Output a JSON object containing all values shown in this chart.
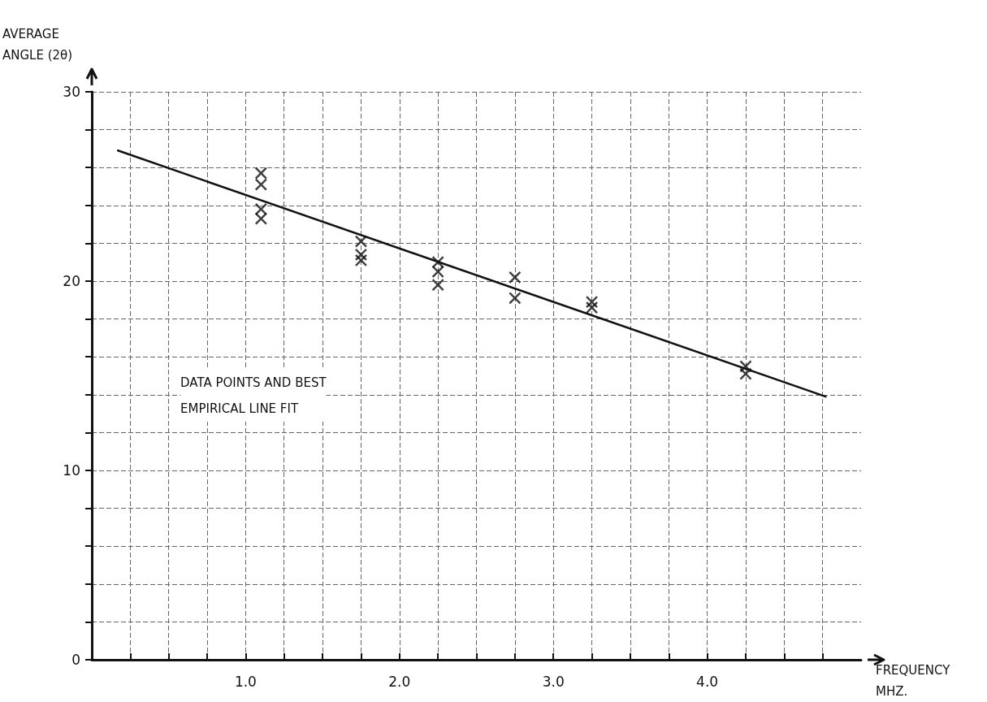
{
  "chart_data": {
    "type": "scatter",
    "xlabel": "FREQUENCY\nMHZ.",
    "ylabel": "AVERAGE\nANGLE (2θ)",
    "annotations": [
      "DATA POINTS AND BEST\nEMPIRICAL LINE FIT"
    ],
    "series": [
      {
        "color": "#111111",
        "marker": "cross",
        "x": [
          1.1,
          1.1,
          1.1,
          1.1,
          1.75,
          1.75,
          1.75,
          2.25,
          2.25,
          2.25,
          2.75,
          2.75,
          3.25,
          3.25,
          4.25,
          4.25
        ],
        "values": [
          25.7,
          25.1,
          23.8,
          23.3,
          22.1,
          21.4,
          21.1,
          21.0,
          20.5,
          19.8,
          20.2,
          19.1,
          18.9,
          18.6,
          15.5,
          15.1
        ]
      },
      {
        "type": "line",
        "color": "#111111",
        "marker": "none",
        "line_style": "solid",
        "x": [
          0.17,
          4.77
        ],
        "values": [
          26.9,
          13.9
        ]
      }
    ],
    "xlim": [
      0,
      5.0
    ],
    "xticks": [
      {
        "value": 0.25,
        "label": null
      },
      {
        "value": 0.5,
        "label": null
      },
      {
        "value": 0.75,
        "label": null
      },
      {
        "value": 1,
        "label": "1.0"
      },
      {
        "value": 1.25,
        "label": null
      },
      {
        "value": 1.5,
        "label": null
      },
      {
        "value": 1.75,
        "label": null
      },
      {
        "value": 2,
        "label": "2.0"
      },
      {
        "value": 2.25,
        "label": null
      },
      {
        "value": 2.5,
        "label": null
      },
      {
        "value": 2.75,
        "label": null
      },
      {
        "value": 3,
        "label": "3.0"
      },
      {
        "value": 3.25,
        "label": null
      },
      {
        "value": 3.5,
        "label": null
      },
      {
        "value": 3.75,
        "label": null
      },
      {
        "value": 4,
        "label": "4.0"
      },
      {
        "value": 4.25,
        "label": null
      },
      {
        "value": 4.5,
        "label": null
      },
      {
        "value": 4.75,
        "label": null
      }
    ],
    "ylim": [
      0,
      30
    ],
    "yticks": [
      0,
      {
        "value": 2,
        "label": null
      },
      {
        "value": 4,
        "label": null
      },
      {
        "value": 6,
        "label": null
      },
      {
        "value": 8,
        "label": null
      },
      10,
      {
        "value": 12,
        "label": null
      },
      {
        "value": 14,
        "label": null
      },
      {
        "value": 16,
        "label": null
      },
      {
        "value": 18,
        "label": null
      },
      20,
      {
        "value": 22,
        "label": null
      },
      {
        "value": 24,
        "label": null
      },
      {
        "value": 26,
        "label": null
      },
      {
        "value": 28,
        "label": null
      },
      30
    ],
    "grid": true
  }
}
